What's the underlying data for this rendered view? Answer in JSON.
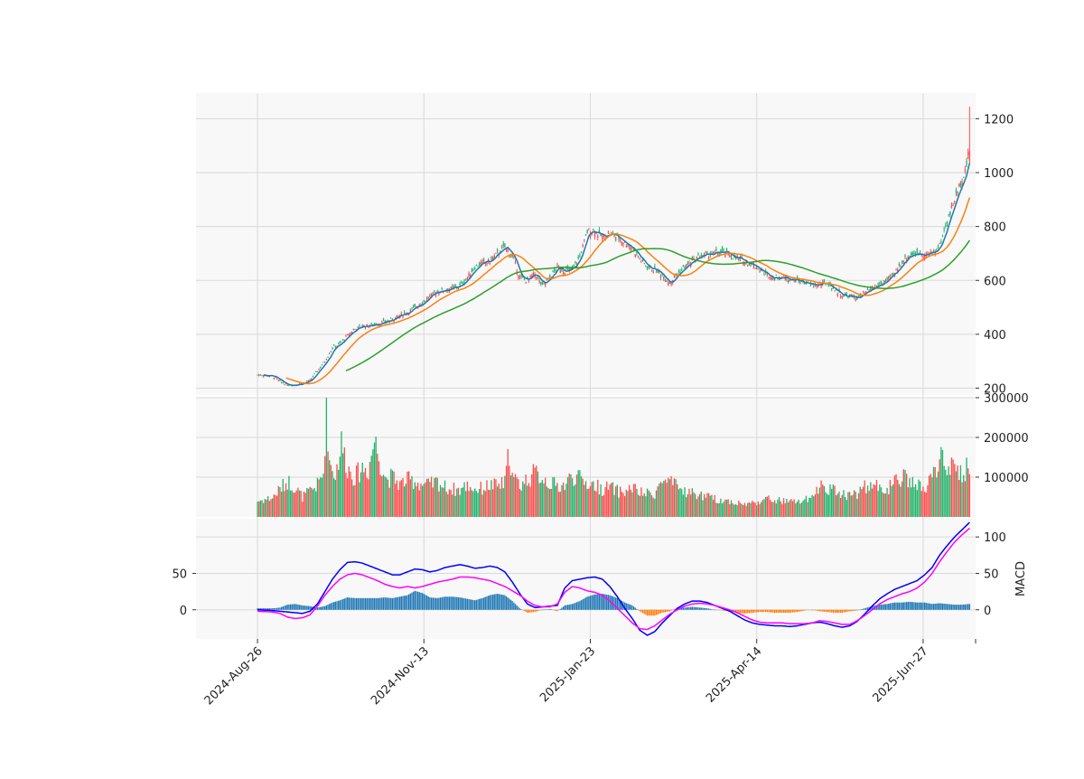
{
  "chart_data": {
    "title": "",
    "type": "candlestick",
    "x_tick_labels": [
      "2024-Aug-26",
      "2024-Nov-13",
      "2025-Jan-23",
      "2025-Apr-14",
      "2025-Jun-27"
    ],
    "grid": true,
    "panels": [
      {
        "name": "price",
        "ylabel": "",
        "ylim": [
          175,
          1295
        ],
        "yticks": [
          200,
          400,
          600,
          800,
          1000,
          1200
        ],
        "up_color": "#ff4d4d",
        "down_color": "#26b36b",
        "series": [
          {
            "color": "#1f77b4"
          },
          {
            "color": "#ff7f0e"
          },
          {
            "color": "#2ca02c"
          }
        ]
      },
      {
        "name": "volume",
        "ylabel": "",
        "ylim": [
          0,
          300000
        ],
        "yticks": [
          100000,
          200000,
          300000
        ],
        "up_color": "#ff4d4d",
        "down_color": "#26b36b"
      },
      {
        "name": "macd",
        "ylabel": "MACD",
        "ylim": [
          -40,
          125
        ],
        "yticks": [
          0,
          50,
          100
        ],
        "left_yticks": [
          0,
          50
        ],
        "series": [
          {
            "color": "#0000ff"
          },
          {
            "color": "#ff00ff"
          }
        ],
        "hist_positive_color": "#1f77b4",
        "hist_negative_color": "#ff7f0e"
      }
    ],
    "price_keypoints": [
      [
        0,
        250
      ],
      [
        5,
        248
      ],
      [
        10,
        245
      ],
      [
        15,
        225
      ],
      [
        20,
        212
      ],
      [
        25,
        213
      ],
      [
        30,
        218
      ],
      [
        35,
        228
      ],
      [
        40,
        265
      ],
      [
        45,
        300
      ],
      [
        50,
        350
      ],
      [
        55,
        365
      ],
      [
        60,
        395
      ],
      [
        65,
        420
      ],
      [
        70,
        430
      ],
      [
        75,
        432
      ],
      [
        80,
        440
      ],
      [
        85,
        445
      ],
      [
        90,
        455
      ],
      [
        95,
        470
      ],
      [
        100,
        482
      ],
      [
        105,
        500
      ],
      [
        110,
        520
      ],
      [
        115,
        540
      ],
      [
        120,
        560
      ],
      [
        125,
        565
      ],
      [
        130,
        570
      ],
      [
        135,
        580
      ],
      [
        140,
        610
      ],
      [
        145,
        650
      ],
      [
        150,
        665
      ],
      [
        155,
        670
      ],
      [
        160,
        700
      ],
      [
        165,
        725
      ],
      [
        170,
        690
      ],
      [
        175,
        610
      ],
      [
        180,
        600
      ],
      [
        185,
        625
      ],
      [
        190,
        580
      ],
      [
        195,
        610
      ],
      [
        200,
        650
      ],
      [
        205,
        635
      ],
      [
        210,
        640
      ],
      [
        215,
        690
      ],
      [
        220,
        780
      ],
      [
        225,
        785
      ],
      [
        230,
        760
      ],
      [
        235,
        775
      ],
      [
        240,
        760
      ],
      [
        245,
        740
      ],
      [
        250,
        720
      ],
      [
        255,
        680
      ],
      [
        260,
        650
      ],
      [
        265,
        640
      ],
      [
        270,
        620
      ],
      [
        275,
        590
      ],
      [
        280,
        625
      ],
      [
        285,
        650
      ],
      [
        290,
        670
      ],
      [
        295,
        690
      ],
      [
        300,
        695
      ],
      [
        305,
        700
      ],
      [
        310,
        705
      ],
      [
        315,
        695
      ],
      [
        320,
        680
      ],
      [
        325,
        670
      ],
      [
        330,
        660
      ],
      [
        335,
        640
      ],
      [
        340,
        620
      ],
      [
        345,
        610
      ],
      [
        350,
        612
      ],
      [
        355,
        605
      ],
      [
        360,
        600
      ],
      [
        365,
        592
      ],
      [
        370,
        582
      ],
      [
        375,
        585
      ],
      [
        380,
        590
      ],
      [
        385,
        565
      ],
      [
        390,
        545
      ],
      [
        395,
        540
      ],
      [
        400,
        535
      ],
      [
        405,
        550
      ],
      [
        410,
        570
      ],
      [
        415,
        585
      ],
      [
        420,
        600
      ],
      [
        425,
        625
      ],
      [
        430,
        670
      ],
      [
        435,
        695
      ],
      [
        440,
        700
      ],
      [
        445,
        698
      ],
      [
        450,
        700
      ],
      [
        455,
        730
      ],
      [
        460,
        820
      ],
      [
        465,
        900
      ],
      [
        470,
        980
      ],
      [
        473,
        1030
      ],
      [
        475,
        1090
      ]
    ],
    "volume_keypoints": [
      [
        0,
        40000
      ],
      [
        10,
        48000
      ],
      [
        15,
        70000
      ],
      [
        20,
        90000
      ],
      [
        25,
        75000
      ],
      [
        30,
        50000
      ],
      [
        35,
        65000
      ],
      [
        40,
        80000
      ],
      [
        44,
        110000
      ],
      [
        46,
        290000
      ],
      [
        48,
        140000
      ],
      [
        52,
        105000
      ],
      [
        56,
        185000
      ],
      [
        60,
        125000
      ],
      [
        65,
        100000
      ],
      [
        70,
        125000
      ],
      [
        74,
        118000
      ],
      [
        78,
        195000
      ],
      [
        82,
        140000
      ],
      [
        86,
        95000
      ],
      [
        90,
        100000
      ],
      [
        95,
        82000
      ],
      [
        100,
        93000
      ],
      [
        105,
        90000
      ],
      [
        110,
        82000
      ],
      [
        115,
        80000
      ],
      [
        120,
        88000
      ],
      [
        125,
        75000
      ],
      [
        130,
        70000
      ],
      [
        135,
        68000
      ],
      [
        140,
        80000
      ],
      [
        145,
        70000
      ],
      [
        150,
        72000
      ],
      [
        155,
        80000
      ],
      [
        160,
        78000
      ],
      [
        165,
        85000
      ],
      [
        168,
        170000
      ],
      [
        170,
        100000
      ],
      [
        175,
        80000
      ],
      [
        180,
        95000
      ],
      [
        185,
        110000
      ],
      [
        190,
        100000
      ],
      [
        195,
        85000
      ],
      [
        200,
        78000
      ],
      [
        205,
        80000
      ],
      [
        210,
        105000
      ],
      [
        215,
        95000
      ],
      [
        220,
        85000
      ],
      [
        225,
        80000
      ],
      [
        230,
        70000
      ],
      [
        235,
        75000
      ],
      [
        240,
        65000
      ],
      [
        245,
        62000
      ],
      [
        250,
        75000
      ],
      [
        255,
        60000
      ],
      [
        260,
        58000
      ],
      [
        265,
        60000
      ],
      [
        270,
        90000
      ],
      [
        275,
        85000
      ],
      [
        280,
        75000
      ],
      [
        285,
        65000
      ],
      [
        290,
        60000
      ],
      [
        295,
        55000
      ],
      [
        300,
        50000
      ],
      [
        305,
        45000
      ],
      [
        310,
        42000
      ],
      [
        315,
        40000
      ],
      [
        320,
        35000
      ],
      [
        325,
        32000
      ],
      [
        330,
        35000
      ],
      [
        335,
        40000
      ],
      [
        340,
        45000
      ],
      [
        345,
        42000
      ],
      [
        350,
        40000
      ],
      [
        355,
        38000
      ],
      [
        360,
        38000
      ],
      [
        365,
        42000
      ],
      [
        370,
        45000
      ],
      [
        375,
        80000
      ],
      [
        380,
        75000
      ],
      [
        385,
        65000
      ],
      [
        390,
        60000
      ],
      [
        395,
        55000
      ],
      [
        400,
        60000
      ],
      [
        405,
        75000
      ],
      [
        410,
        80000
      ],
      [
        415,
        75000
      ],
      [
        420,
        70000
      ],
      [
        425,
        85000
      ],
      [
        430,
        100000
      ],
      [
        435,
        90000
      ],
      [
        440,
        80000
      ],
      [
        445,
        70000
      ],
      [
        450,
        95000
      ],
      [
        455,
        150000
      ],
      [
        460,
        130000
      ],
      [
        465,
        115000
      ],
      [
        470,
        110000
      ],
      [
        475,
        130000
      ]
    ],
    "macd_keypoints": [
      [
        0,
        0
      ],
      [
        10,
        -1
      ],
      [
        20,
        -3
      ],
      [
        30,
        -5
      ],
      [
        35,
        -2
      ],
      [
        40,
        8
      ],
      [
        45,
        25
      ],
      [
        50,
        42
      ],
      [
        55,
        55
      ],
      [
        60,
        65
      ],
      [
        65,
        66
      ],
      [
        70,
        64
      ],
      [
        75,
        60
      ],
      [
        80,
        56
      ],
      [
        85,
        52
      ],
      [
        90,
        48
      ],
      [
        95,
        48
      ],
      [
        100,
        52
      ],
      [
        105,
        56
      ],
      [
        110,
        55
      ],
      [
        115,
        52
      ],
      [
        120,
        54
      ],
      [
        125,
        58
      ],
      [
        130,
        60
      ],
      [
        135,
        62
      ],
      [
        140,
        60
      ],
      [
        145,
        57
      ],
      [
        150,
        58
      ],
      [
        155,
        60
      ],
      [
        160,
        58
      ],
      [
        165,
        52
      ],
      [
        170,
        38
      ],
      [
        175,
        22
      ],
      [
        180,
        8
      ],
      [
        185,
        3
      ],
      [
        190,
        4
      ],
      [
        195,
        5
      ],
      [
        200,
        6
      ],
      [
        205,
        30
      ],
      [
        210,
        40
      ],
      [
        215,
        42
      ],
      [
        220,
        44
      ],
      [
        225,
        45
      ],
      [
        230,
        42
      ],
      [
        235,
        32
      ],
      [
        240,
        18
      ],
      [
        245,
        2
      ],
      [
        250,
        -12
      ],
      [
        255,
        -28
      ],
      [
        260,
        -35
      ],
      [
        265,
        -30
      ],
      [
        270,
        -18
      ],
      [
        275,
        -8
      ],
      [
        280,
        2
      ],
      [
        285,
        8
      ],
      [
        290,
        12
      ],
      [
        295,
        12
      ],
      [
        300,
        10
      ],
      [
        305,
        6
      ],
      [
        310,
        2
      ],
      [
        315,
        -2
      ],
      [
        320,
        -8
      ],
      [
        325,
        -14
      ],
      [
        330,
        -18
      ],
      [
        335,
        -20
      ],
      [
        340,
        -21
      ],
      [
        345,
        -22
      ],
      [
        350,
        -22
      ],
      [
        355,
        -23
      ],
      [
        360,
        -22
      ],
      [
        365,
        -20
      ],
      [
        370,
        -18
      ],
      [
        375,
        -17
      ],
      [
        380,
        -19
      ],
      [
        385,
        -22
      ],
      [
        390,
        -24
      ],
      [
        395,
        -22
      ],
      [
        400,
        -16
      ],
      [
        405,
        -6
      ],
      [
        410,
        5
      ],
      [
        415,
        15
      ],
      [
        420,
        22
      ],
      [
        425,
        28
      ],
      [
        430,
        32
      ],
      [
        435,
        36
      ],
      [
        440,
        40
      ],
      [
        445,
        48
      ],
      [
        450,
        58
      ],
      [
        455,
        75
      ],
      [
        460,
        88
      ],
      [
        465,
        100
      ],
      [
        470,
        110
      ],
      [
        475,
        120
      ]
    ],
    "signal_keypoints": [
      [
        0,
        -2
      ],
      [
        10,
        -3
      ],
      [
        15,
        -5
      ],
      [
        20,
        -10
      ],
      [
        25,
        -12
      ],
      [
        30,
        -11
      ],
      [
        35,
        -7
      ],
      [
        40,
        5
      ],
      [
        45,
        20
      ],
      [
        50,
        32
      ],
      [
        55,
        42
      ],
      [
        60,
        48
      ],
      [
        65,
        50
      ],
      [
        70,
        48
      ],
      [
        75,
        44
      ],
      [
        80,
        40
      ],
      [
        85,
        35
      ],
      [
        90,
        32
      ],
      [
        95,
        30
      ],
      [
        100,
        32
      ],
      [
        105,
        30
      ],
      [
        110,
        32
      ],
      [
        115,
        35
      ],
      [
        120,
        38
      ],
      [
        125,
        40
      ],
      [
        130,
        42
      ],
      [
        135,
        45
      ],
      [
        140,
        45
      ],
      [
        145,
        44
      ],
      [
        150,
        42
      ],
      [
        155,
        40
      ],
      [
        160,
        36
      ],
      [
        165,
        32
      ],
      [
        170,
        26
      ],
      [
        175,
        20
      ],
      [
        180,
        12
      ],
      [
        185,
        6
      ],
      [
        190,
        4
      ],
      [
        195,
        4
      ],
      [
        200,
        8
      ],
      [
        205,
        24
      ],
      [
        210,
        32
      ],
      [
        215,
        30
      ],
      [
        220,
        26
      ],
      [
        225,
        24
      ],
      [
        230,
        20
      ],
      [
        235,
        12
      ],
      [
        240,
        2
      ],
      [
        245,
        -8
      ],
      [
        250,
        -18
      ],
      [
        255,
        -26
      ],
      [
        260,
        -27
      ],
      [
        265,
        -22
      ],
      [
        270,
        -14
      ],
      [
        275,
        -6
      ],
      [
        280,
        0
      ],
      [
        285,
        5
      ],
      [
        290,
        8
      ],
      [
        295,
        9
      ],
      [
        300,
        8
      ],
      [
        305,
        6
      ],
      [
        310,
        3
      ],
      [
        315,
        0
      ],
      [
        320,
        -4
      ],
      [
        325,
        -9
      ],
      [
        330,
        -14
      ],
      [
        335,
        -17
      ],
      [
        340,
        -18
      ],
      [
        345,
        -18
      ],
      [
        350,
        -18
      ],
      [
        355,
        -19
      ],
      [
        360,
        -19
      ],
      [
        365,
        -19
      ],
      [
        370,
        -18
      ],
      [
        375,
        -15
      ],
      [
        380,
        -16
      ],
      [
        385,
        -18
      ],
      [
        390,
        -20
      ],
      [
        395,
        -20
      ],
      [
        400,
        -15
      ],
      [
        405,
        -8
      ],
      [
        410,
        0
      ],
      [
        415,
        8
      ],
      [
        420,
        14
      ],
      [
        425,
        18
      ],
      [
        430,
        22
      ],
      [
        435,
        25
      ],
      [
        440,
        30
      ],
      [
        445,
        38
      ],
      [
        450,
        50
      ],
      [
        455,
        66
      ],
      [
        460,
        80
      ],
      [
        465,
        93
      ],
      [
        470,
        103
      ],
      [
        475,
        112
      ]
    ]
  }
}
